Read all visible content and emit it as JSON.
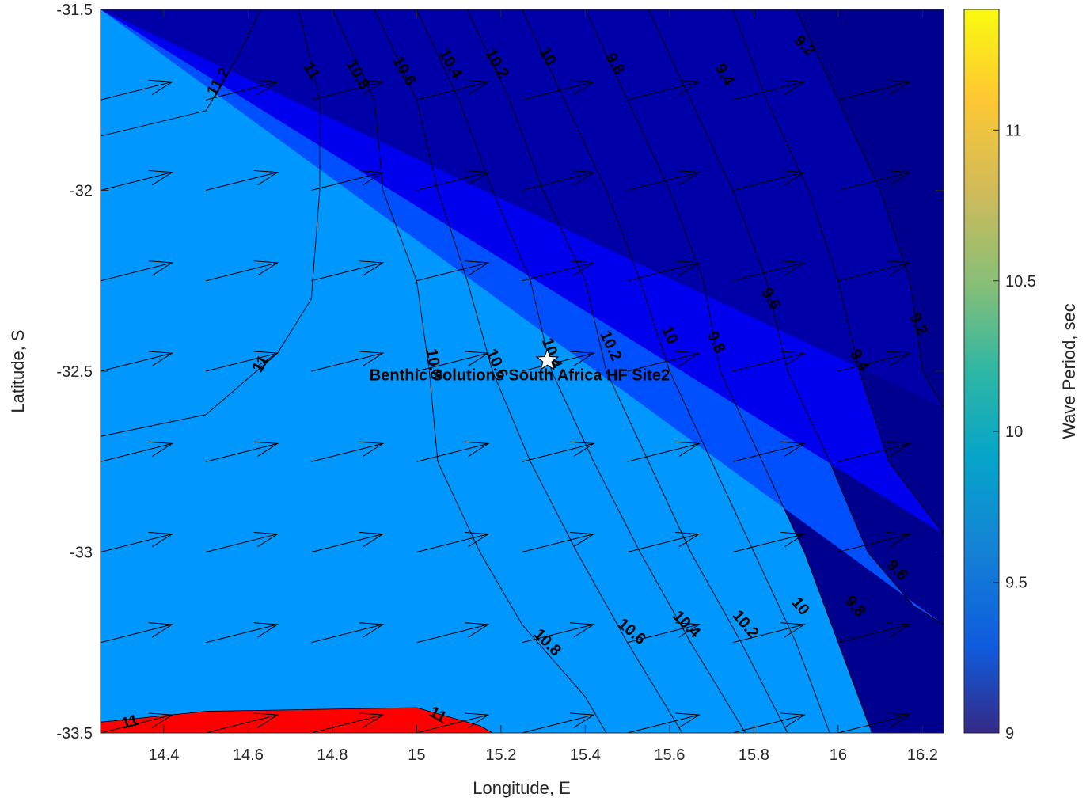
{
  "chart_data": {
    "type": "contour",
    "title": "",
    "xlabel": "Longitude, E",
    "ylabel": "Latitude, S",
    "xlim": [
      14.25,
      16.25
    ],
    "ylim": [
      -33.5,
      -31.5
    ],
    "xticks": [
      14.4,
      14.6,
      14.8,
      15,
      15.2,
      15.4,
      15.6,
      15.8,
      16,
      16.2
    ],
    "yticks": [
      -31.5,
      -32,
      -32.5,
      -33,
      -33.5
    ],
    "colorbar": {
      "label": "Wave Period, sec",
      "range": [
        9,
        11.4
      ],
      "ticks": [
        9,
        9.5,
        10,
        10.5,
        11
      ]
    },
    "contour_levels": [
      9.2,
      9.4,
      9.6,
      9.8,
      10,
      10.2,
      10.4,
      10.6,
      10.8,
      11,
      11.2
    ],
    "contour_lines": [
      {
        "level": 11.2,
        "points": [
          [
            14.25,
            -31.85
          ],
          [
            14.5,
            -31.78
          ],
          [
            14.58,
            -31.62
          ],
          [
            14.63,
            -31.5
          ]
        ]
      },
      {
        "level": 11.0,
        "points": [
          [
            14.25,
            -32.68
          ],
          [
            14.5,
            -32.62
          ],
          [
            14.67,
            -32.45
          ],
          [
            14.75,
            -32.3
          ],
          [
            14.77,
            -32.0
          ],
          [
            14.77,
            -31.75
          ],
          [
            14.72,
            -31.5
          ]
        ]
      },
      {
        "level": 10.8,
        "points": [
          [
            14.8,
            -31.5
          ],
          [
            14.9,
            -31.75
          ],
          [
            14.92,
            -32.0
          ],
          [
            15.0,
            -32.25
          ],
          [
            15.03,
            -32.5
          ],
          [
            15.05,
            -32.75
          ],
          [
            15.15,
            -33.0
          ],
          [
            15.25,
            -33.2
          ],
          [
            15.4,
            -33.4
          ],
          [
            15.45,
            -33.5
          ]
        ]
      },
      {
        "level": 10.6,
        "points": [
          [
            14.9,
            -31.5
          ],
          [
            15.0,
            -31.75
          ],
          [
            15.05,
            -32.0
          ],
          [
            15.12,
            -32.25
          ],
          [
            15.18,
            -32.5
          ],
          [
            15.27,
            -32.75
          ],
          [
            15.38,
            -33.0
          ],
          [
            15.5,
            -33.25
          ],
          [
            15.63,
            -33.5
          ]
        ]
      },
      {
        "level": 10.4,
        "points": [
          [
            15.0,
            -31.5
          ],
          [
            15.1,
            -31.75
          ],
          [
            15.18,
            -32.0
          ],
          [
            15.27,
            -32.25
          ],
          [
            15.32,
            -32.5
          ],
          [
            15.42,
            -32.75
          ],
          [
            15.53,
            -33.0
          ],
          [
            15.65,
            -33.25
          ],
          [
            15.78,
            -33.5
          ]
        ]
      },
      {
        "level": 10.2,
        "points": [
          [
            15.12,
            -31.5
          ],
          [
            15.22,
            -31.75
          ],
          [
            15.3,
            -32.0
          ],
          [
            15.4,
            -32.25
          ],
          [
            15.45,
            -32.5
          ],
          [
            15.55,
            -32.75
          ],
          [
            15.65,
            -33.0
          ],
          [
            15.77,
            -33.25
          ],
          [
            15.88,
            -33.5
          ]
        ]
      },
      {
        "level": 10.0,
        "points": [
          [
            15.25,
            -31.5
          ],
          [
            15.35,
            -31.75
          ],
          [
            15.45,
            -32.0
          ],
          [
            15.53,
            -32.25
          ],
          [
            15.6,
            -32.5
          ],
          [
            15.7,
            -32.75
          ],
          [
            15.8,
            -33.0
          ],
          [
            15.9,
            -33.25
          ],
          [
            15.98,
            -33.5
          ]
        ]
      },
      {
        "level": 9.8,
        "points": [
          [
            15.4,
            -31.5
          ],
          [
            15.5,
            -31.75
          ],
          [
            15.6,
            -32.0
          ],
          [
            15.68,
            -32.25
          ],
          [
            15.72,
            -32.5
          ],
          [
            15.82,
            -32.75
          ],
          [
            15.92,
            -33.0
          ],
          [
            16.0,
            -33.25
          ],
          [
            16.08,
            -33.5
          ]
        ]
      },
      {
        "level": 9.6,
        "points": [
          [
            15.55,
            -31.5
          ],
          [
            15.65,
            -31.75
          ],
          [
            15.75,
            -32.0
          ],
          [
            15.83,
            -32.25
          ],
          [
            15.88,
            -32.5
          ],
          [
            15.98,
            -32.75
          ],
          [
            16.07,
            -33.0
          ],
          [
            16.18,
            -33.15
          ],
          [
            16.25,
            -33.2
          ]
        ]
      },
      {
        "level": 9.4,
        "points": [
          [
            15.75,
            -31.5
          ],
          [
            15.83,
            -31.75
          ],
          [
            15.93,
            -32.0
          ],
          [
            16.0,
            -32.25
          ],
          [
            16.05,
            -32.5
          ],
          [
            16.12,
            -32.75
          ],
          [
            16.25,
            -32.95
          ]
        ]
      },
      {
        "level": 9.2,
        "points": [
          [
            15.9,
            -31.5
          ],
          [
            16.0,
            -31.75
          ],
          [
            16.1,
            -32.0
          ],
          [
            16.17,
            -32.25
          ],
          [
            16.2,
            -32.5
          ],
          [
            16.25,
            -32.6
          ]
        ]
      }
    ],
    "contour_labels": [
      {
        "text": "11.2",
        "x": 14.53,
        "y": -31.7,
        "angle": -60
      },
      {
        "text": "11",
        "x": 14.75,
        "y": -31.67,
        "angle": 60
      },
      {
        "text": "10.8",
        "x": 14.86,
        "y": -31.68,
        "angle": 60
      },
      {
        "text": "10.6",
        "x": 14.97,
        "y": -31.67,
        "angle": 60
      },
      {
        "text": "10.4",
        "x": 15.08,
        "y": -31.65,
        "angle": 60
      },
      {
        "text": "10.2",
        "x": 15.19,
        "y": -31.65,
        "angle": 60
      },
      {
        "text": "10",
        "x": 15.31,
        "y": -31.63,
        "angle": 60
      },
      {
        "text": "9.8",
        "x": 15.47,
        "y": -31.65,
        "angle": 60
      },
      {
        "text": "9.4",
        "x": 15.73,
        "y": -31.68,
        "angle": 60
      },
      {
        "text": "9.2",
        "x": 15.92,
        "y": -31.6,
        "angle": 45
      },
      {
        "text": "11",
        "x": 14.63,
        "y": -32.48,
        "angle": -60
      },
      {
        "text": "10.8",
        "x": 15.04,
        "y": -32.48,
        "angle": 80
      },
      {
        "text": "10.6",
        "x": 15.19,
        "y": -32.48,
        "angle": 65
      },
      {
        "text": "10.4",
        "x": 15.32,
        "y": -32.45,
        "angle": 70
      },
      {
        "text": "10.2",
        "x": 15.46,
        "y": -32.43,
        "angle": 65
      },
      {
        "text": "10",
        "x": 15.6,
        "y": -32.4,
        "angle": 65
      },
      {
        "text": "9.8",
        "x": 15.71,
        "y": -32.42,
        "angle": 65
      },
      {
        "text": "9.6",
        "x": 15.84,
        "y": -32.3,
        "angle": 60
      },
      {
        "text": "9.4",
        "x": 16.05,
        "y": -32.47,
        "angle": 60
      },
      {
        "text": "9.2",
        "x": 16.19,
        "y": -32.37,
        "angle": 65
      },
      {
        "text": "9.6",
        "x": 16.14,
        "y": -33.05,
        "angle": 45
      },
      {
        "text": "9.8",
        "x": 16.04,
        "y": -33.15,
        "angle": 50
      },
      {
        "text": "10",
        "x": 15.91,
        "y": -33.15,
        "angle": 50
      },
      {
        "text": "10.2",
        "x": 15.78,
        "y": -33.2,
        "angle": 50
      },
      {
        "text": "10.4",
        "x": 15.64,
        "y": -33.2,
        "angle": 45
      },
      {
        "text": "10.6",
        "x": 15.51,
        "y": -33.22,
        "angle": 40
      },
      {
        "text": "10.8",
        "x": 15.31,
        "y": -33.25,
        "angle": 45
      },
      {
        "text": "11",
        "x": 15.05,
        "y": -33.45,
        "angle": 30
      },
      {
        "text": "11",
        "x": 14.32,
        "y": -33.47,
        "angle": -15
      }
    ],
    "vector_field": {
      "x": [
        14.25,
        14.5,
        14.75,
        15.0,
        15.25,
        15.5,
        15.75,
        16.0
      ],
      "y": [
        -31.75,
        -32.0,
        -32.25,
        -32.5,
        -32.75,
        -33.0,
        -33.25,
        -33.5
      ],
      "u": 0.17,
      "v": 0.05
    },
    "site": {
      "label": "Benthic Solutions South Africa HF Site2",
      "x": 15.31,
      "y": -32.47
    }
  }
}
